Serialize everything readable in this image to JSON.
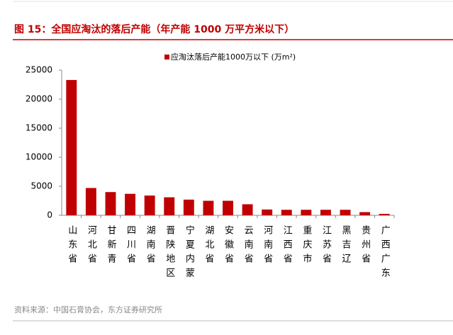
{
  "chart_data": {
    "type": "bar",
    "title": "图 15：全国应淘汰的落后产能（年产能 1000 万平方米以下）",
    "source": "资料来源：中国石膏协会，东方证券研究所",
    "categories": [
      "山东省",
      "河北省",
      "甘新青",
      "四川省",
      "湖南省",
      "晋陕地区",
      "宁夏内蒙",
      "湖北省",
      "安徽省",
      "云南省",
      "河南省",
      "江西省",
      "重庆市",
      "江苏省",
      "黑吉辽",
      "贵州省",
      "广西广东"
    ],
    "series": [
      {
        "name": "应淘汰落后产能1000万以下 (万m²)",
        "color": "#c00000",
        "values": [
          23300,
          4700,
          4000,
          3700,
          3400,
          3100,
          2700,
          2500,
          2500,
          1900,
          1000,
          950,
          950,
          950,
          950,
          550,
          250
        ]
      }
    ],
    "ylim": [
      0,
      25000
    ],
    "yticks": [
      0,
      5000,
      10000,
      15000,
      20000,
      25000
    ],
    "legend": "top"
  }
}
